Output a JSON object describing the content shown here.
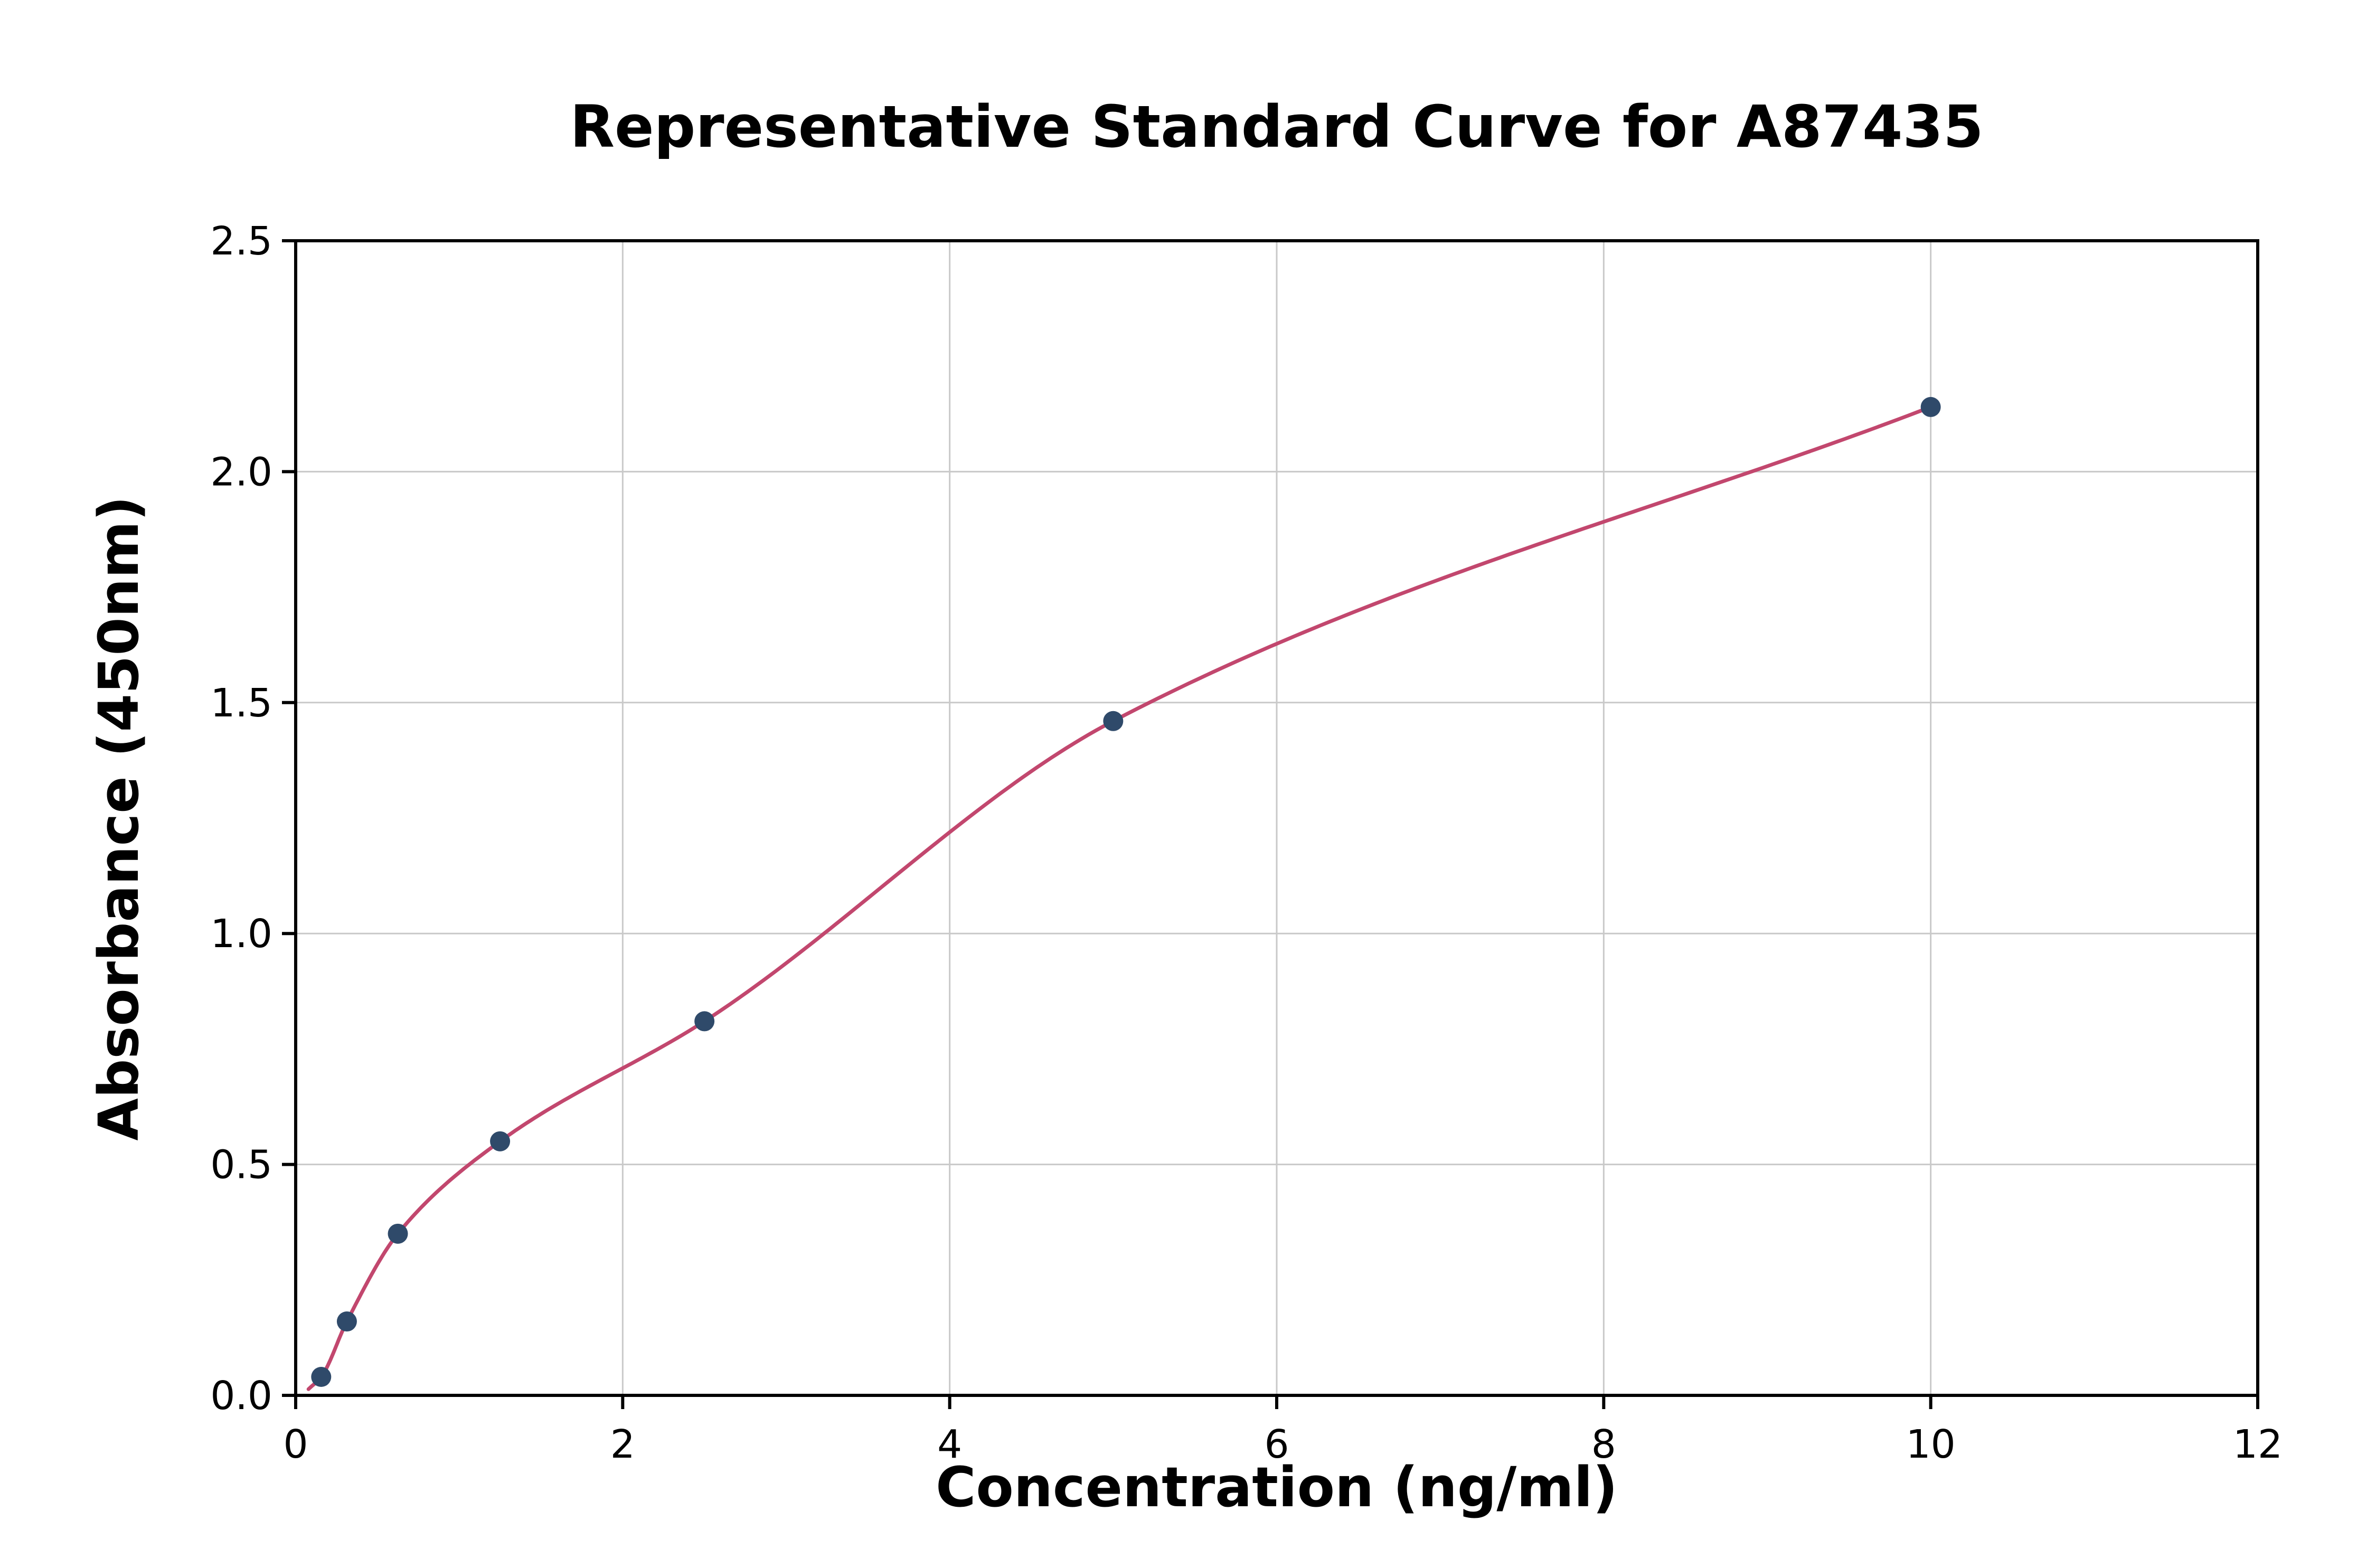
{
  "chart_data": {
    "type": "scatter",
    "title": "Representative Standard Curve for A87435",
    "xlabel": "Concentration (ng/ml)",
    "ylabel": "Absorbance (450nm)",
    "xlim": [
      0,
      12
    ],
    "ylim": [
      0,
      2.5
    ],
    "xticks": [
      0,
      2,
      4,
      6,
      8,
      10,
      12
    ],
    "xtick_labels": [
      "0",
      "2",
      "4",
      "6",
      "8",
      "10",
      "12"
    ],
    "yticks": [
      0,
      0.5,
      1.0,
      1.5,
      2.0,
      2.5
    ],
    "ytick_labels": [
      "0.0",
      "0.5",
      "1.0",
      "1.5",
      "2.0",
      "2.5"
    ],
    "grid": true,
    "legend_position": "none",
    "background_color": "#ffffff",
    "grid_color": "#c9c9c9",
    "axis_color": "#000000",
    "series": [
      {
        "name": "standard-points",
        "type": "scatter",
        "x": [
          0.156,
          0.313,
          0.625,
          1.25,
          2.5,
          5,
          10
        ],
        "y": [
          0.04,
          0.16,
          0.35,
          0.55,
          0.81,
          1.46,
          2.14
        ],
        "color": "#2f4a6a"
      },
      {
        "name": "fitted-curve",
        "type": "line",
        "color": "#c2476e",
        "description": "smooth saturating fit through the standard points"
      }
    ]
  }
}
